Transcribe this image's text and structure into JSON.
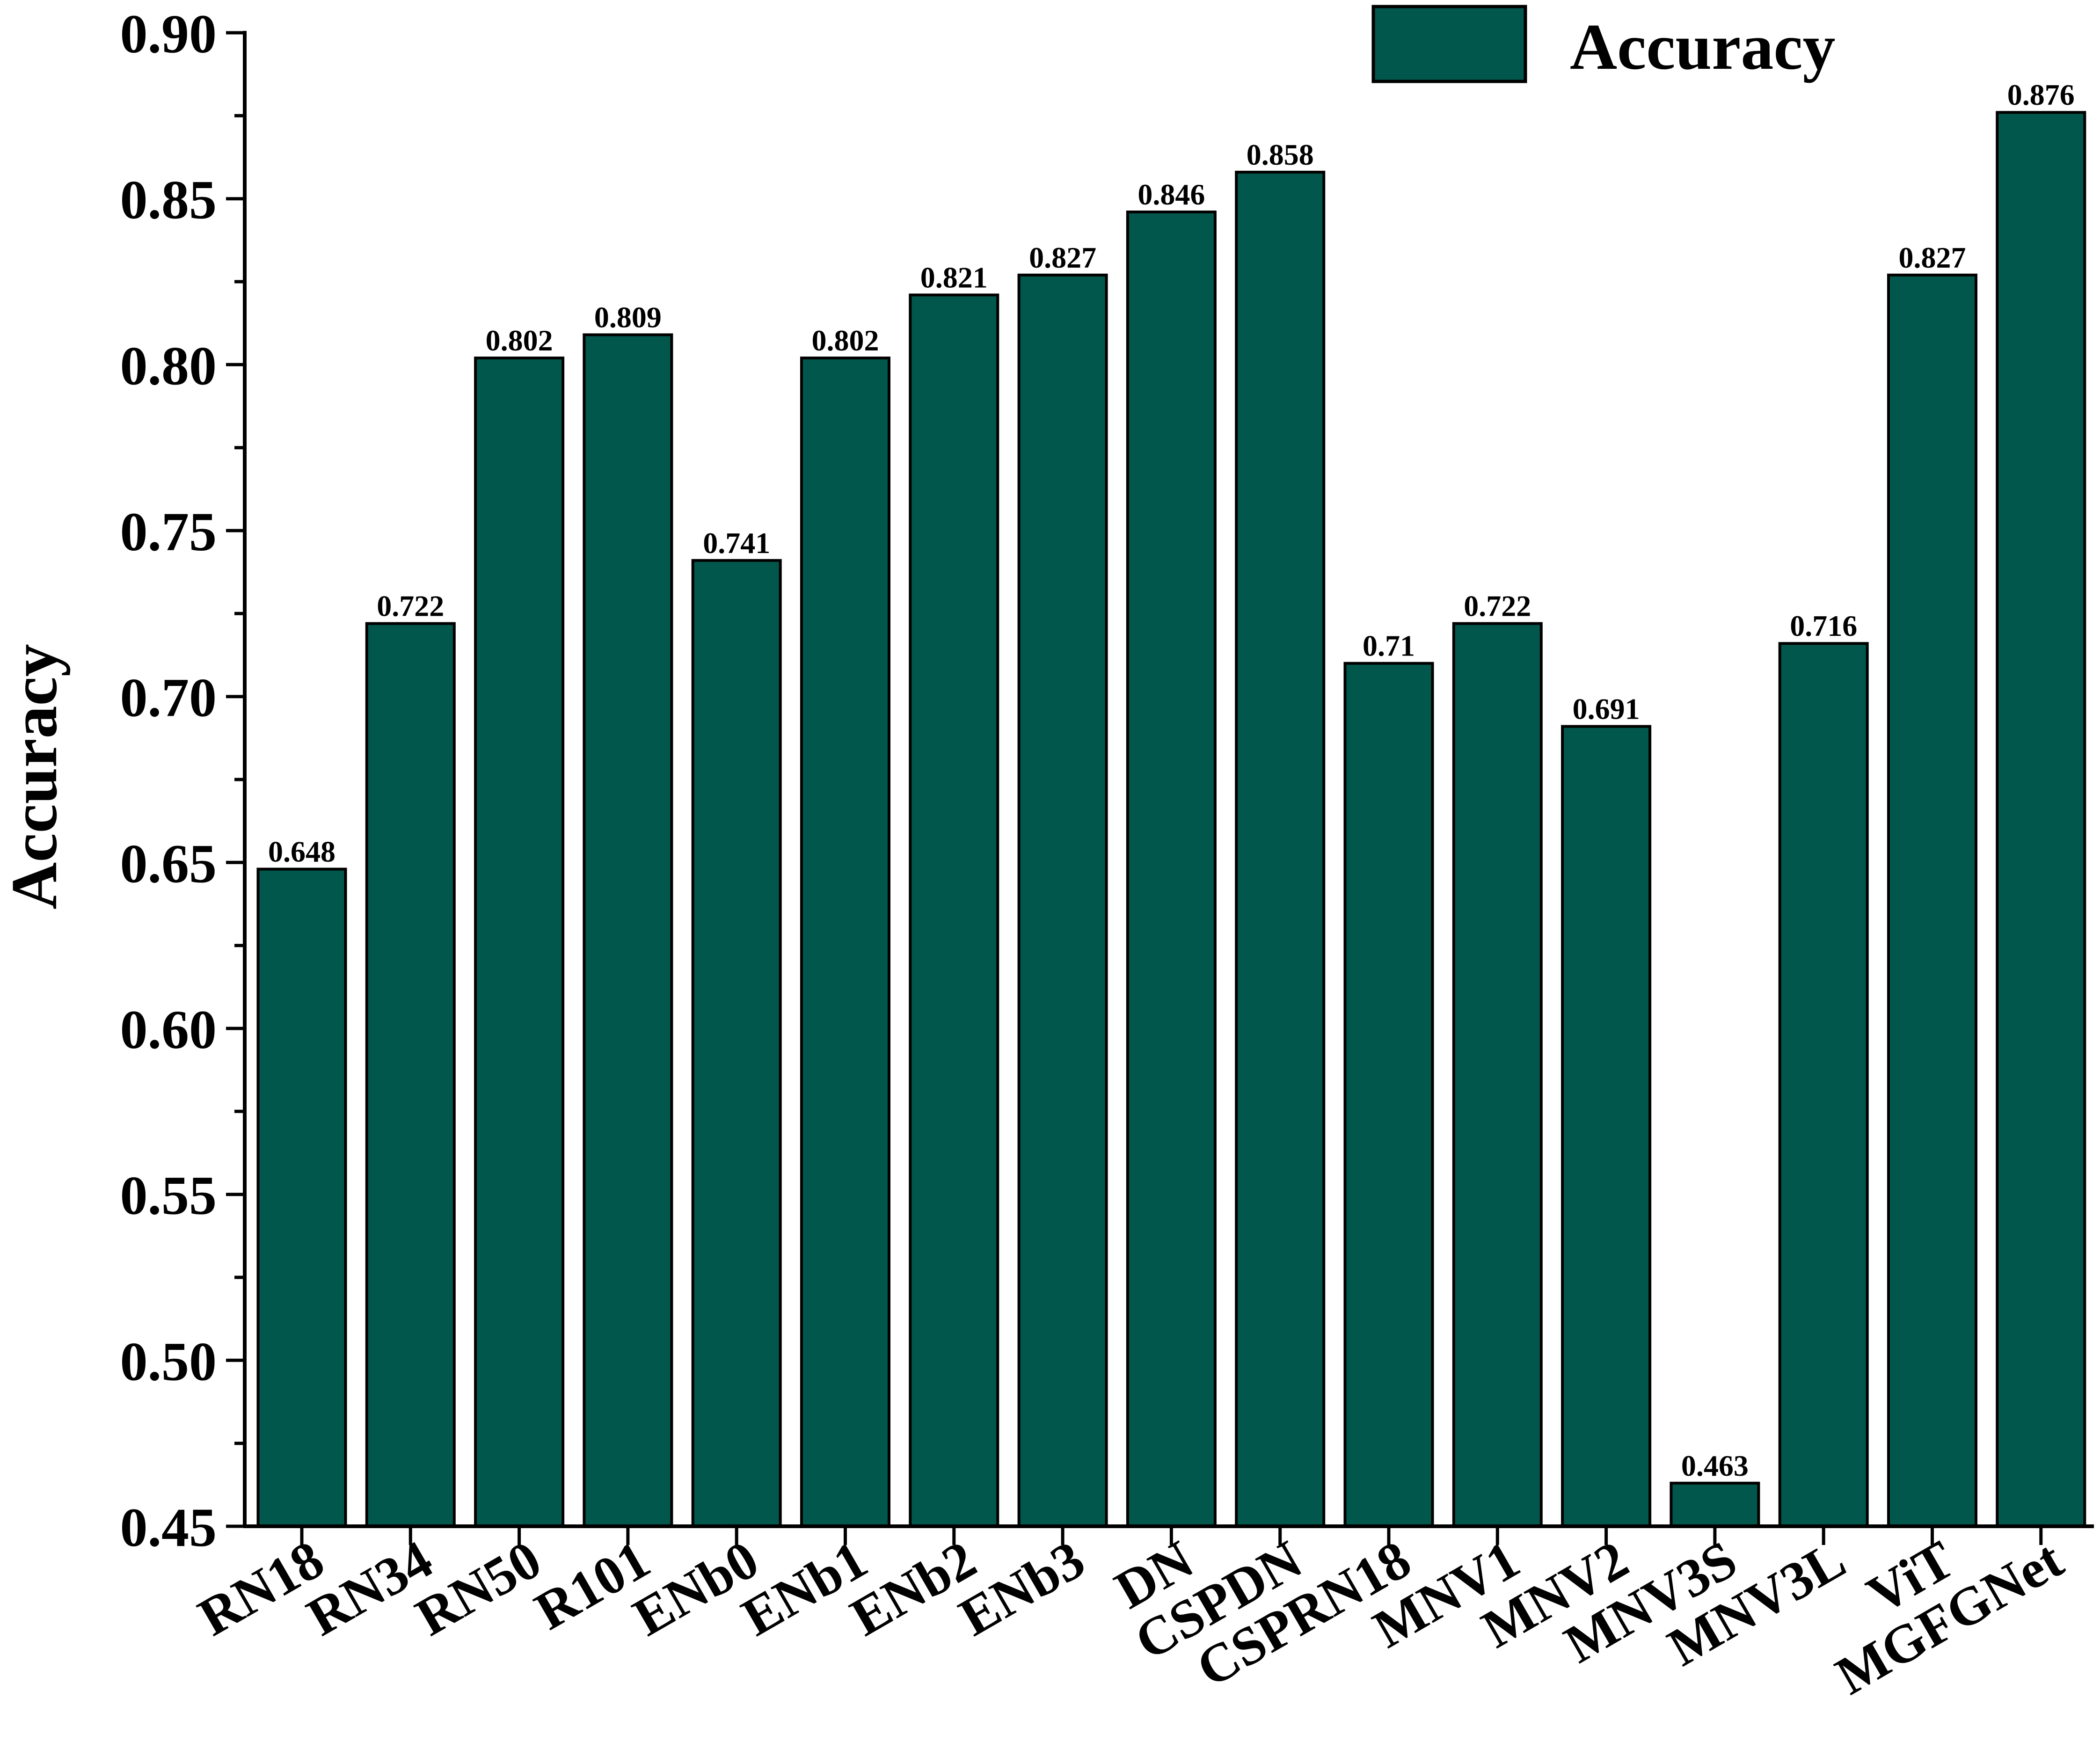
{
  "chart_data": {
    "type": "bar",
    "title": "",
    "xlabel": "",
    "ylabel": "Accuracy",
    "ylim": [
      0.45,
      0.9
    ],
    "y_major_step": 0.05,
    "y_minor_step": 0.025,
    "y_tick_labels": [
      "0.45",
      "0.50",
      "0.55",
      "0.60",
      "0.65",
      "0.70",
      "0.75",
      "0.80",
      "0.85",
      "0.90"
    ],
    "categories": [
      "RN18",
      "RN34",
      "RN50",
      "R101",
      "ENb0",
      "ENb1",
      "ENb2",
      "ENb3",
      "DN",
      "CSPDN",
      "CSPRN18",
      "MNV1",
      "MNV2",
      "MNV3S",
      "MNV3L",
      "ViT",
      "MGFGNet"
    ],
    "series": [
      {
        "name": "Accuracy",
        "values": [
          0.648,
          0.722,
          0.802,
          0.809,
          0.741,
          0.802,
          0.821,
          0.827,
          0.846,
          0.858,
          0.71,
          0.722,
          0.691,
          0.463,
          0.716,
          0.827,
          0.876
        ],
        "value_labels": [
          "0.648",
          "0.722",
          "0.802",
          "0.809",
          "0.741",
          "0.802",
          "0.821",
          "0.827",
          "0.846",
          "0.858",
          "0.71",
          "0.722",
          "0.691",
          "0.463",
          "0.716",
          "0.827",
          "0.876"
        ],
        "color": "#02574c"
      }
    ],
    "legend": {
      "position": "top-right",
      "label": "Accuracy"
    },
    "grid": false,
    "bar_edge_color": "#000000",
    "axis_color": "#000000"
  }
}
